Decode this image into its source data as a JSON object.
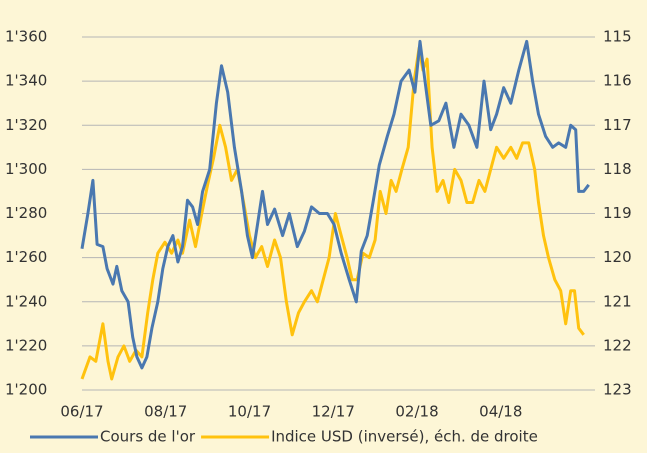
{
  "chart_data": {
    "type": "line",
    "xlim": [
      0,
      12.25
    ],
    "xticks": [
      {
        "value": 0,
        "label": "06/17"
      },
      {
        "value": 2,
        "label": "08/17"
      },
      {
        "value": 4,
        "label": "10/17"
      },
      {
        "value": 6,
        "label": "12/17"
      },
      {
        "value": 8,
        "label": "02/18"
      },
      {
        "value": 10,
        "label": "04/18"
      }
    ],
    "ylim": [
      1200,
      1360
    ],
    "yticks": [
      {
        "value": 1200,
        "label": "1'200"
      },
      {
        "value": 1220,
        "label": "1'220"
      },
      {
        "value": 1240,
        "label": "1'240"
      },
      {
        "value": 1260,
        "label": "1'260"
      },
      {
        "value": 1280,
        "label": "1'280"
      },
      {
        "value": 1300,
        "label": "1'300"
      },
      {
        "value": 1320,
        "label": "1'320"
      },
      {
        "value": 1340,
        "label": "1'340"
      },
      {
        "value": 1360,
        "label": "1'360"
      }
    ],
    "y2lim": [
      123,
      115
    ],
    "y2ticks": [
      123,
      122,
      121,
      120,
      119,
      118,
      117,
      116,
      115
    ],
    "grid": true,
    "legend": "bottom",
    "series": [
      {
        "name": "Cours de l'or",
        "color": "#4a78b0",
        "x": [
          0,
          0.14,
          0.26,
          0.36,
          0.5,
          0.6,
          0.74,
          0.83,
          0.95,
          1.1,
          1.21,
          1.31,
          1.43,
          1.55,
          1.67,
          1.81,
          1.93,
          2.05,
          2.17,
          2.29,
          2.4,
          2.52,
          2.64,
          2.76,
          2.88,
          3.05,
          3.21,
          3.33,
          3.48,
          3.64,
          3.81,
          3.95,
          4.07,
          4.19,
          4.31,
          4.43,
          4.6,
          4.79,
          4.95,
          5.14,
          5.31,
          5.48,
          5.67,
          5.86,
          6.02,
          6.19,
          6.38,
          6.55,
          6.67,
          6.81,
          6.95,
          7.1,
          7.29,
          7.45,
          7.62,
          7.81,
          7.95,
          8.07,
          8.19,
          8.33,
          8.52,
          8.69,
          8.88,
          9.05,
          9.24,
          9.43,
          9.6,
          9.76,
          9.9,
          10.07,
          10.24,
          10.43,
          10.62,
          10.76,
          10.9,
          11.07,
          11.24,
          11.38,
          11.55,
          11.67,
          11.79,
          11.86,
          11.98,
          12.1
        ],
        "values": [
          1264,
          1280,
          1295,
          1266,
          1265,
          1255,
          1248,
          1256,
          1245,
          1240,
          1224,
          1215,
          1210,
          1215,
          1228,
          1240,
          1255,
          1265,
          1270,
          1258,
          1265,
          1286,
          1283,
          1275,
          1290,
          1300,
          1330,
          1347,
          1335,
          1310,
          1290,
          1270,
          1260,
          1275,
          1290,
          1275,
          1282,
          1270,
          1280,
          1265,
          1272,
          1283,
          1280,
          1280,
          1275,
          1262,
          1250,
          1240,
          1263,
          1270,
          1285,
          1302,
          1315,
          1325,
          1340,
          1345,
          1335,
          1358,
          1340,
          1320,
          1322,
          1330,
          1310,
          1325,
          1320,
          1310,
          1340,
          1318,
          1325,
          1337,
          1330,
          1345,
          1358,
          1340,
          1325,
          1315,
          1310,
          1312,
          1310,
          1320,
          1318,
          1290,
          1290,
          1293
        ]
      },
      {
        "name": "Indice USD (inversé), éch. de droite",
        "color": "#ffc20e",
        "axis": "y2",
        "x": [
          0,
          0.19,
          0.33,
          0.5,
          0.62,
          0.71,
          0.86,
          1,
          1.14,
          1.29,
          1.43,
          1.57,
          1.69,
          1.81,
          1.98,
          2.14,
          2.29,
          2.4,
          2.57,
          2.71,
          2.86,
          3,
          3.14,
          3.29,
          3.43,
          3.57,
          3.71,
          3.86,
          4,
          4.14,
          4.29,
          4.43,
          4.6,
          4.74,
          4.88,
          5.02,
          5.17,
          5.31,
          5.48,
          5.62,
          5.76,
          5.9,
          6.05,
          6.19,
          6.33,
          6.45,
          6.57,
          6.71,
          6.86,
          7,
          7.12,
          7.26,
          7.38,
          7.5,
          7.64,
          7.79,
          7.93,
          8.05,
          8.14,
          8.24,
          8.36,
          8.48,
          8.62,
          8.76,
          8.9,
          9.05,
          9.19,
          9.33,
          9.48,
          9.62,
          9.76,
          9.9,
          10.07,
          10.24,
          10.38,
          10.52,
          10.67,
          10.81,
          10.9,
          11.02,
          11.14,
          11.29,
          11.43,
          11.55,
          11.67,
          11.76,
          11.86,
          11.98
        ],
        "values": [
          122.75,
          122.25,
          122.35,
          121.5,
          122.35,
          122.75,
          122.25,
          122,
          122.35,
          122.1,
          122.25,
          121.25,
          120.5,
          119.9,
          119.65,
          119.9,
          119.6,
          119.9,
          119.15,
          119.75,
          119,
          118.35,
          117.75,
          117,
          117.5,
          118.25,
          118,
          118.75,
          119.5,
          120,
          119.75,
          120.2,
          119.6,
          120,
          121,
          121.75,
          121.25,
          121,
          120.75,
          121,
          120.5,
          120,
          119,
          119.5,
          120,
          120.5,
          120.5,
          119.9,
          120,
          119.6,
          118.5,
          119,
          118.25,
          118.5,
          118,
          117.5,
          116,
          115.25,
          115.75,
          115.5,
          117.5,
          118.5,
          118.25,
          118.75,
          118,
          118.25,
          118.75,
          118.75,
          118.25,
          118.5,
          118,
          117.5,
          117.75,
          117.5,
          117.75,
          117.4,
          117.4,
          118,
          118.75,
          119.5,
          120,
          120.5,
          120.75,
          121.5,
          120.75,
          120.75,
          121.6,
          121.75
        ]
      }
    ]
  }
}
